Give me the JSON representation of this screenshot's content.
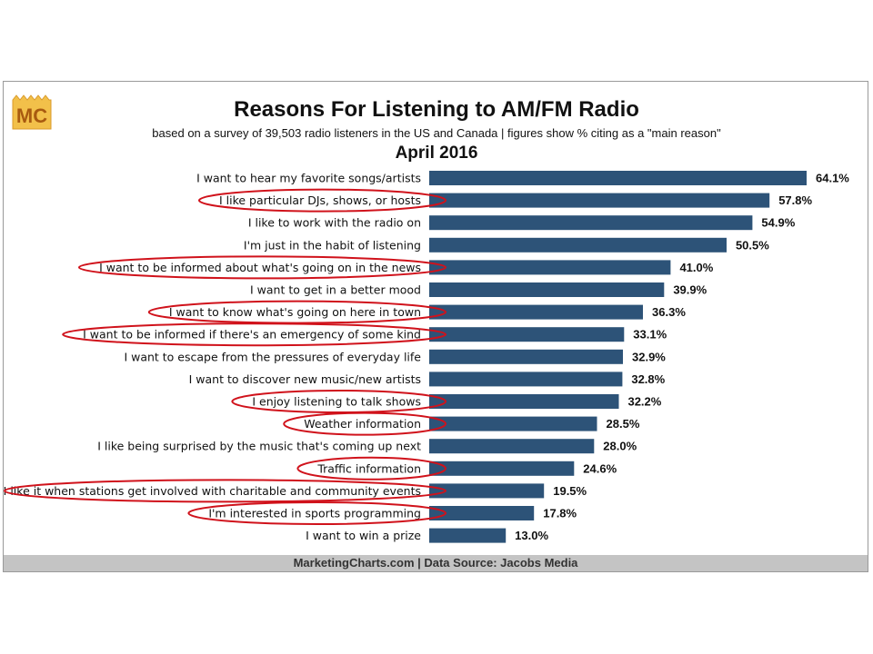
{
  "header": {
    "logo_text": "MC",
    "title": "Reasons For Listening to AM/FM Radio",
    "subtitle": "based on a survey of 39,503 radio listeners in the US and Canada | figures show % citing as a \"main reason\"",
    "date": "April 2016"
  },
  "footer": {
    "text": "MarketingCharts.com | Data Source: Jacobs Media"
  },
  "colors": {
    "bar": "#2d5378",
    "highlight_ellipse": "#d0121b",
    "footer_bg": "#c4c4c4"
  },
  "chart_data": {
    "type": "bar",
    "orientation": "horizontal",
    "categories": [
      "I want to hear my favorite songs/artists",
      "I like particular DJs, shows, or hosts",
      "I like to work with the radio on",
      "I'm just in the habit of listening",
      "I want to be informed about what's going on in the news",
      "I want to get in a better mood",
      "I want to know what's going on here in town",
      "I want to be informed if there's an emergency of some kind",
      "I want to escape from the pressures of everyday life",
      "I want to discover new music/new artists",
      "I enjoy listening to talk shows",
      "Weather information",
      "I like being surprised by the music that's coming up next",
      "Traffic information",
      "I like it when stations get involved with charitable and community events",
      "I'm interested in sports programming",
      "I want to win a prize"
    ],
    "values": [
      64.1,
      57.8,
      54.9,
      50.5,
      41.0,
      39.9,
      36.3,
      33.1,
      32.9,
      32.8,
      32.2,
      28.5,
      28.0,
      24.6,
      19.5,
      17.8,
      13.0
    ],
    "value_labels": [
      "64.1%",
      "57.8%",
      "54.9%",
      "50.5%",
      "41.0%",
      "39.9%",
      "36.3%",
      "33.1%",
      "32.9%",
      "32.8%",
      "32.2%",
      "28.5%",
      "28.0%",
      "24.6%",
      "19.5%",
      "17.8%",
      "13.0%"
    ],
    "highlighted": [
      false,
      true,
      false,
      false,
      true,
      false,
      true,
      true,
      false,
      false,
      true,
      true,
      false,
      true,
      true,
      true,
      false
    ],
    "title": "Reasons For Listening to AM/FM Radio",
    "xlabel": "",
    "ylabel": "",
    "xlim": [
      0,
      64.1
    ],
    "grid": false,
    "legend": "none"
  }
}
